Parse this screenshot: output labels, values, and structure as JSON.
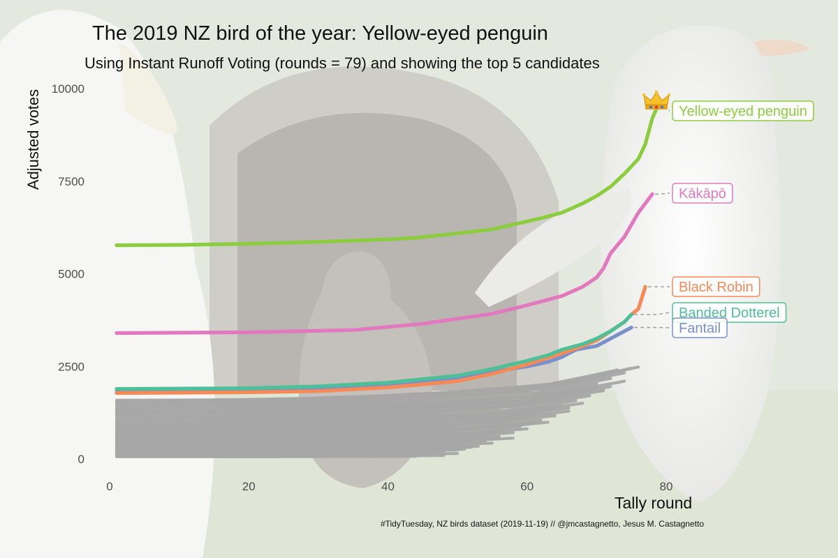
{
  "chart_data": {
    "type": "line",
    "title": "The 2019 NZ bird of the year: Yellow-eyed penguin",
    "subtitle": "Using Instant Runoff Voting (rounds = 79) and showing the top 5 candidates",
    "caption": "#TidyTuesday, NZ birds dataset (2019-11-19) // @jmcastagnetto, Jesus M. Castagnetto",
    "xlabel": "Tally round",
    "ylabel": "Adjusted votes",
    "xlim": [
      0,
      85
    ],
    "ylim": [
      -300,
      10500
    ],
    "xticks": [
      0,
      20,
      40,
      60,
      80
    ],
    "yticks": [
      0,
      2500,
      5000,
      7500,
      10000
    ],
    "grid": false,
    "legend": "direct labels at line ends",
    "series": [
      {
        "name": "Yellow-eyed penguin",
        "color": "#8ccd3f",
        "points": [
          [
            1,
            5770
          ],
          [
            10,
            5780
          ],
          [
            20,
            5810
          ],
          [
            30,
            5860
          ],
          [
            40,
            5930
          ],
          [
            44,
            5970
          ],
          [
            50,
            6090
          ],
          [
            55,
            6200
          ],
          [
            58,
            6330
          ],
          [
            62,
            6500
          ],
          [
            65,
            6650
          ],
          [
            68,
            6900
          ],
          [
            70,
            7100
          ],
          [
            72,
            7350
          ],
          [
            74,
            7700
          ],
          [
            76,
            8100
          ],
          [
            77,
            8500
          ],
          [
            78,
            9200
          ],
          [
            79,
            9620
          ]
        ]
      },
      {
        "name": "Kākāpō",
        "color": "#e278be",
        "points": [
          [
            1,
            3400
          ],
          [
            20,
            3420
          ],
          [
            35,
            3480
          ],
          [
            45,
            3650
          ],
          [
            55,
            3920
          ],
          [
            60,
            4150
          ],
          [
            65,
            4400
          ],
          [
            68,
            4650
          ],
          [
            70,
            4900
          ],
          [
            71,
            5150
          ],
          [
            72,
            5550
          ],
          [
            74,
            6000
          ],
          [
            76,
            6650
          ],
          [
            78,
            7150
          ]
        ]
      },
      {
        "name": "Black Robin",
        "color": "#f58a57",
        "points": [
          [
            1,
            1780
          ],
          [
            20,
            1800
          ],
          [
            30,
            1830
          ],
          [
            40,
            1930
          ],
          [
            50,
            2100
          ],
          [
            55,
            2300
          ],
          [
            60,
            2550
          ],
          [
            65,
            2850
          ],
          [
            68,
            3050
          ],
          [
            70,
            3200
          ],
          [
            72,
            3450
          ],
          [
            74,
            3700
          ],
          [
            75,
            3900
          ],
          [
            76,
            4050
          ],
          [
            77,
            4650
          ]
        ]
      },
      {
        "name": "Banded Dotterel",
        "color": "#4fbf98",
        "points": [
          [
            1,
            1890
          ],
          [
            20,
            1910
          ],
          [
            30,
            1960
          ],
          [
            40,
            2060
          ],
          [
            50,
            2250
          ],
          [
            55,
            2430
          ],
          [
            60,
            2650
          ],
          [
            63,
            2800
          ],
          [
            65,
            2950
          ],
          [
            68,
            3100
          ],
          [
            70,
            3250
          ],
          [
            72,
            3450
          ],
          [
            74,
            3700
          ],
          [
            75,
            3900
          ]
        ]
      },
      {
        "name": "Fantail",
        "color": "#7a90cb",
        "points": [
          [
            1,
            1860
          ],
          [
            20,
            1880
          ],
          [
            30,
            1920
          ],
          [
            40,
            2020
          ],
          [
            50,
            2200
          ],
          [
            55,
            2350
          ],
          [
            60,
            2500
          ],
          [
            63,
            2620
          ],
          [
            65,
            2750
          ],
          [
            67,
            2950
          ],
          [
            70,
            3050
          ],
          [
            72,
            3250
          ],
          [
            74,
            3450
          ],
          [
            75,
            3550
          ]
        ]
      }
    ],
    "other_candidates_color": "#a6a6a6"
  },
  "crown_icon": "crown-icon"
}
